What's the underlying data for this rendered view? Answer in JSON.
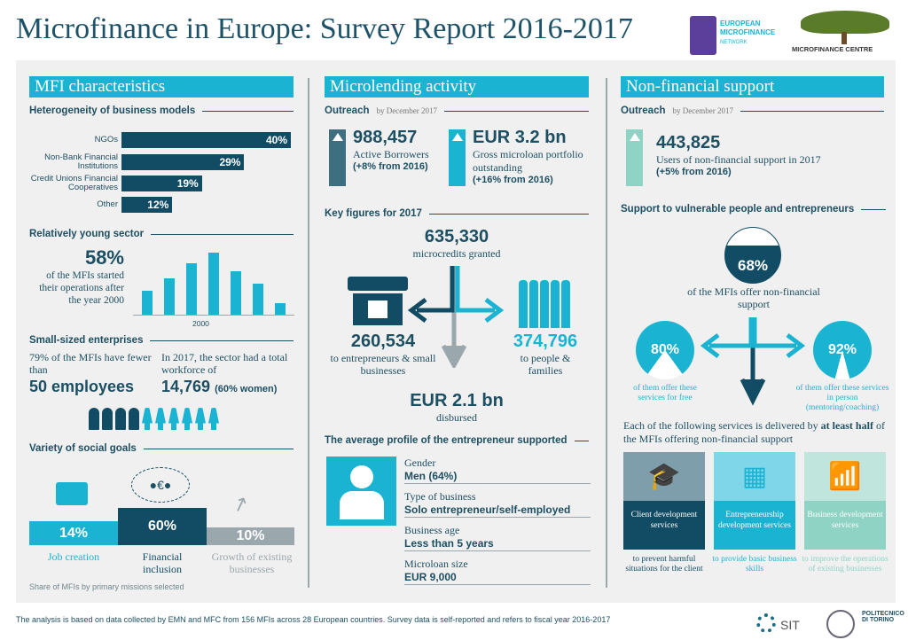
{
  "title": "Microfinance in Europe: Survey Report 2016-2017",
  "logos": {
    "emn": "EUROPEAN MICROFINANCE NETWORK",
    "mfc": "MICROFINANCE CENTRE",
    "sit": "SIT",
    "polito": "POLITECNICO DI TORINO"
  },
  "colors": {
    "dark": "#124c64",
    "cyan": "#1ab4d2",
    "light": "#8fd3c4",
    "grey": "#9aa7ad"
  },
  "left": {
    "header": "MFI characteristics",
    "models_title": "Heterogeneity of business models",
    "models": [
      {
        "label": "NGOs",
        "value": "40%",
        "pct": 40
      },
      {
        "label": "Non-Bank Financial Institutions",
        "value": "29%",
        "pct": 29
      },
      {
        "label": "Credit Unions Financial Cooperatives",
        "value": "19%",
        "pct": 19
      },
      {
        "label": "Other",
        "value": "12%",
        "pct": 12
      }
    ],
    "young_title": "Relatively young sector",
    "young_pct": "58%",
    "young_text": "of the MFIs started their operations after the year 2000",
    "young_bars": [
      27,
      40,
      57,
      69,
      48,
      35,
      13
    ],
    "young_tick": "2000",
    "small_title": "Small-sized enterprises",
    "small_text1": "79% of the MFIs have fewer than",
    "small_big1": "50 employees",
    "small_text2": "In 2017, the sector had a total workforce of",
    "small_big2": "14,769",
    "small_note2": "(60% women)",
    "people_men": 4,
    "people_women": 6,
    "goals_title": "Variety of social goals",
    "goals": [
      {
        "label": "Job creation",
        "value": "14%"
      },
      {
        "label": "Financial inclusion",
        "value": "60%"
      },
      {
        "label": "Growth of existing businesses",
        "value": "10%"
      }
    ],
    "goals_caption": "Share of MFIs by primary missions selected"
  },
  "middle": {
    "header": "Microlending activity",
    "outreach": "Outreach",
    "outreach_date": "by December 2017",
    "borrowers": "988,457",
    "borrowers_label": "Active Borrowers",
    "borrowers_change": "(+8% from 2016)",
    "portfolio": "EUR 3.2 bn",
    "portfolio_label": "Gross microloan portfolio outstanding",
    "portfolio_change": "(+16% from 2016)",
    "key_title": "Key figures for 2017",
    "granted": "635,330",
    "granted_label": "microcredits granted",
    "ent": "260,534",
    "ent_label": "to entrepreneurs & small businesses",
    "fam": "374,796",
    "fam_label": "to people & families",
    "disbursed": "EUR 2.1 bn",
    "disbursed_label": "disbursed",
    "profile_title": "The average profile of the entrepreneur supported",
    "profile": [
      {
        "k": "Gender",
        "v": "Men (64%)"
      },
      {
        "k": "Type of business",
        "v": "Solo entrepreneur/self-employed"
      },
      {
        "k": "Business age",
        "v": "Less than 5 years"
      },
      {
        "k": "Microloan size",
        "v": "EUR 9,000"
      }
    ]
  },
  "right": {
    "header": "Non-financial support",
    "outreach": "Outreach",
    "outreach_date": "by December 2017",
    "users": "443,825",
    "users_label": "Users of non-financial support in 2017",
    "users_change": "(+5% from 2016)",
    "support_title": "Support to vulnerable people and entrepreneurs",
    "offer_pct": "68%",
    "offer_val": 68,
    "offer_label": "of the MFIs offer non-financial support",
    "free_pct": "80%",
    "free_val": 80,
    "free_label": "of them offer these services for free",
    "person_pct": "92%",
    "person_val": 92,
    "person_label": "of them offer these services in person (mentoring/coaching)",
    "services_intro": "Each of the following services is delivered by ",
    "services_bold": "at least half",
    "services_rest": " of the MFIs offering non-financial support",
    "services": [
      {
        "name": "Client development services",
        "desc": "to prevent harmful situations for the client"
      },
      {
        "name": "Entrepreneurship development services",
        "desc": "to provide basic business skills"
      },
      {
        "name": "Business development services",
        "desc": "to improve the operations of existing businesses"
      }
    ]
  },
  "footer": "The analysis is based on data collected by EMN and MFC from 156 MFIs across 28 European countries. Survey data is self-reported and refers to fiscal year 2016-2017"
}
